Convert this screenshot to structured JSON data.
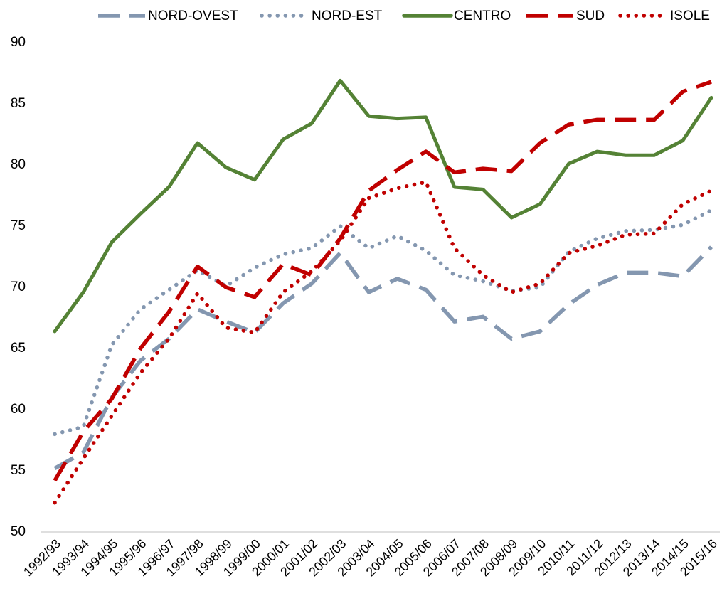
{
  "chart_data": {
    "type": "line",
    "categories": [
      "1992/93",
      "1993/94",
      "1994/95",
      "1995/96",
      "1996/97",
      "1997/98",
      "1998/99",
      "1999/00",
      "2000/01",
      "2001/02",
      "2002/03",
      "2003/04",
      "2004/05",
      "2005/06",
      "2006/07",
      "2007/08",
      "2008/09",
      "2009/10",
      "2010/11",
      "2011/12",
      "2012/13",
      "2013/14",
      "2014/15",
      "2015/16"
    ],
    "series": [
      {
        "name": "NORD-OVEST",
        "color": "#8497b0",
        "style": "dashed",
        "values": [
          55.2,
          56.5,
          61,
          64,
          65.8,
          68.2,
          67.2,
          66.3,
          68.7,
          70.3,
          72.8,
          69.6,
          70.7,
          69.8,
          67.2,
          67.6,
          65.8,
          66.4,
          68.6,
          70.2,
          71.2,
          71.2,
          70.9,
          73.3
        ]
      },
      {
        "name": "NORD-EST",
        "color": "#8497b0",
        "style": "dotted",
        "values": [
          58,
          58.6,
          65.3,
          68.2,
          69.8,
          71.4,
          70.1,
          71.6,
          72.7,
          73.2,
          75,
          73.2,
          74.2,
          73,
          71,
          70.5,
          69.7,
          70,
          72.9,
          74,
          74.6,
          74.7,
          75.1,
          76.3
        ]
      },
      {
        "name": "CENTRO",
        "color": "#548235",
        "style": "solid",
        "values": [
          66.4,
          69.6,
          73.7,
          76,
          78.2,
          81.8,
          79.8,
          78.8,
          82.1,
          83.4,
          86.9,
          84,
          83.8,
          83.9,
          78.2,
          78,
          75.7,
          76.8,
          80.1,
          81.1,
          80.8,
          80.8,
          82,
          85.5
        ]
      },
      {
        "name": "SUD",
        "color": "#c00000",
        "style": "dashed",
        "values": [
          54.2,
          58.2,
          60.9,
          65,
          68,
          71.7,
          70,
          69.2,
          71.9,
          71,
          74,
          77.9,
          79.6,
          81.1,
          79.4,
          79.7,
          79.5,
          81.8,
          83.3,
          83.7,
          83.7,
          83.7,
          86,
          86.8
        ]
      },
      {
        "name": "ISOLE",
        "color": "#c00000",
        "style": "dotted",
        "values": [
          52.4,
          56,
          59.5,
          63,
          65.8,
          69.5,
          66.7,
          66.3,
          69.6,
          71.3,
          73.8,
          77.3,
          78.1,
          78.6,
          73.2,
          71,
          69.6,
          70.3,
          72.8,
          73.4,
          74.3,
          74.4,
          76.8,
          77.9
        ]
      }
    ],
    "ylim": [
      50,
      90
    ],
    "yticks": [
      50,
      55,
      60,
      65,
      70,
      75,
      80,
      85,
      90
    ],
    "legend": "top",
    "grid": false
  }
}
